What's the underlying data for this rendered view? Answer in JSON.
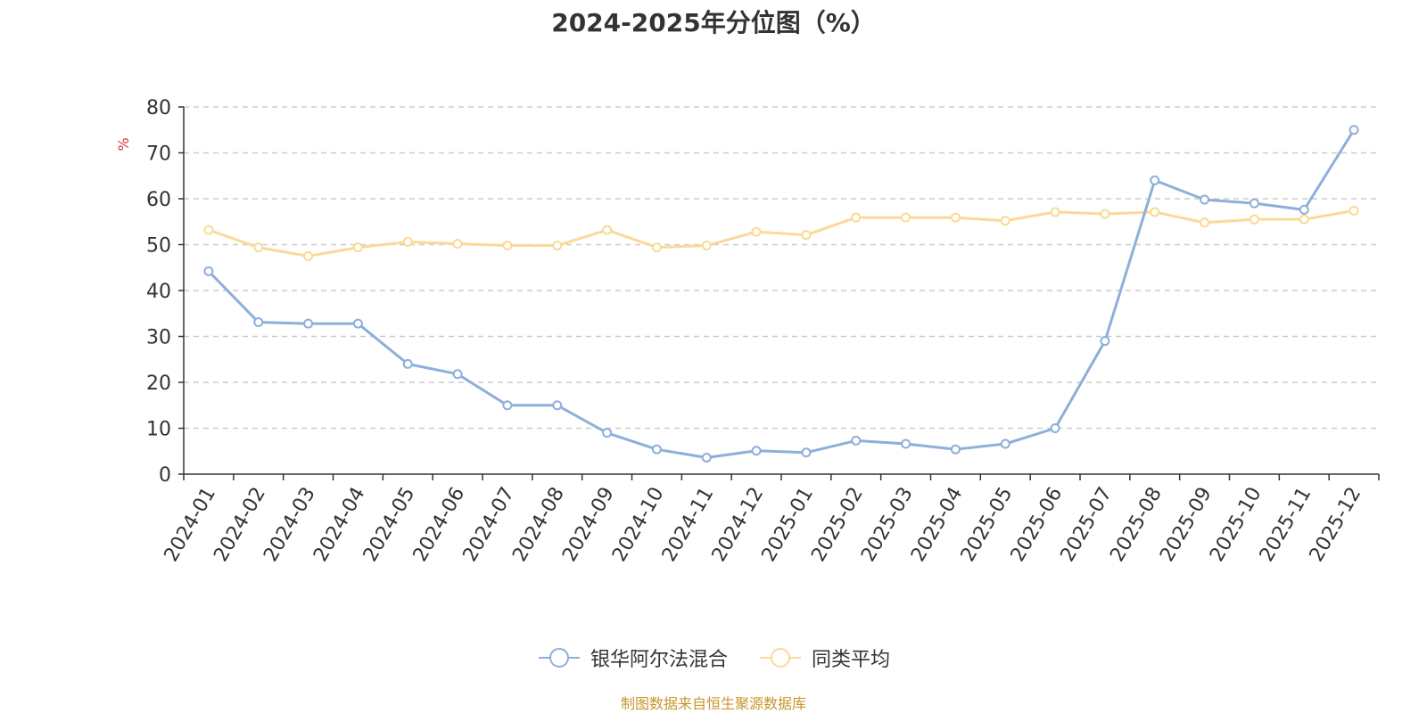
{
  "chart_data": {
    "type": "line",
    "title": "2024-2025年分位图（%）",
    "ylabel": "%",
    "xlabel": "",
    "ylim": [
      0,
      80
    ],
    "yticks": [
      0,
      10,
      20,
      30,
      40,
      50,
      60,
      70,
      80
    ],
    "grid": true,
    "legend_position": "bottom-center",
    "categories": [
      "2024-01",
      "2024-02",
      "2024-03",
      "2024-04",
      "2024-05",
      "2024-06",
      "2024-07",
      "2024-08",
      "2024-09",
      "2024-10",
      "2024-11",
      "2024-12",
      "2025-01",
      "2025-02",
      "2025-03",
      "2025-04",
      "2025-05",
      "2025-06",
      "2025-07",
      "2025-08",
      "2025-09",
      "2025-10",
      "2025-11",
      "2025-12"
    ],
    "series": [
      {
        "name": "银华阿尔法混合",
        "color": "#8eaedb",
        "values": [
          44.2,
          33.1,
          32.8,
          32.8,
          24.0,
          21.8,
          15.0,
          15.0,
          9.0,
          5.4,
          3.6,
          5.1,
          4.7,
          7.3,
          6.6,
          5.4,
          6.6,
          10.0,
          29.0,
          64.0,
          59.8,
          59.0,
          57.6,
          75.0
        ]
      },
      {
        "name": "同类平均",
        "color": "#fbd997",
        "values": [
          53.2,
          49.4,
          47.5,
          49.4,
          50.6,
          50.2,
          49.8,
          49.8,
          53.2,
          49.4,
          49.8,
          52.8,
          52.1,
          55.9,
          55.9,
          55.9,
          55.2,
          57.1,
          56.7,
          57.1,
          54.8,
          55.5,
          55.5,
          57.4
        ]
      }
    ]
  },
  "footer": {
    "source": "制图数据来自恒生聚源数据库"
  }
}
